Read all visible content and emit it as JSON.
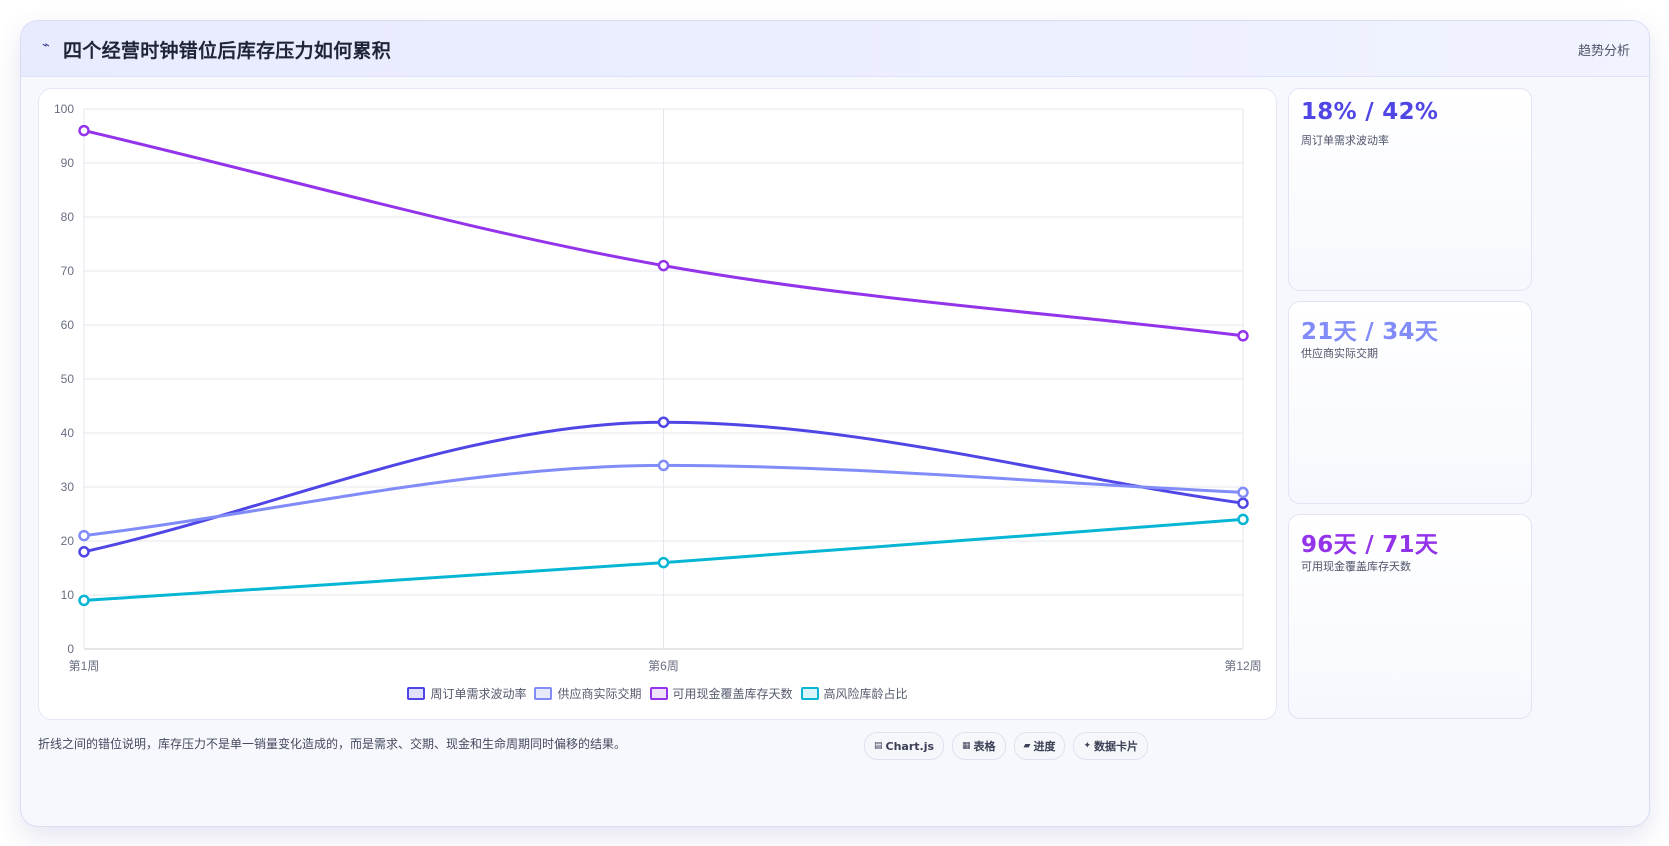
{
  "header": {
    "icon": "sparkline-icon",
    "title": "四个经营时钟错位后库存压力如何累积",
    "tag": "趋势分析"
  },
  "chart_data": {
    "type": "line",
    "title": "",
    "xlabel": "",
    "ylabel": "",
    "categories": [
      "第1周",
      "第6周",
      "第12周"
    ],
    "ylim": [
      0,
      100
    ],
    "yticks": [
      0,
      10,
      20,
      30,
      40,
      50,
      60,
      70,
      80,
      90,
      100
    ],
    "grid": true,
    "legend_position": "bottom",
    "series": [
      {
        "name": "周订单需求波动率",
        "values": [
          18,
          42,
          27
        ],
        "color": "#4f46e5",
        "fill": "#e0e2fb"
      },
      {
        "name": "供应商实际交期",
        "values": [
          21,
          34,
          29
        ],
        "color": "#818cf8",
        "fill": "#e7e9fd"
      },
      {
        "name": "可用现金覆盖库存天数",
        "values": [
          96,
          71,
          58
        ],
        "color": "#9333ea",
        "fill": "#efe3fc"
      },
      {
        "name": "高风险库龄占比",
        "values": [
          9,
          16,
          24
        ],
        "color": "#06b6d4",
        "fill": "#d9f5fa"
      }
    ]
  },
  "kpis": [
    {
      "value": "18% / 42%",
      "label": "周订单需求波动率",
      "color": "#4f46e5"
    },
    {
      "value": "21天 / 34天",
      "label": "供应商实际交期",
      "color": "#818cf8"
    },
    {
      "value": "96天 / 71天",
      "label": "可用现金覆盖库存天数",
      "color": "#9333ea"
    }
  ],
  "footnote": "折线之间的错位说明，库存压力不是单一销量变化造成的，而是需求、交期、现金和生命周期同时偏移的结果。",
  "pills": [
    {
      "icon": "chart-icon",
      "glyph": "▤",
      "label": "Chart.js"
    },
    {
      "icon": "table-icon",
      "glyph": "▦",
      "label": "表格"
    },
    {
      "icon": "progress-icon",
      "glyph": "▰",
      "label": "进度"
    },
    {
      "icon": "data-card-icon",
      "glyph": "✦",
      "label": "数据卡片"
    }
  ]
}
